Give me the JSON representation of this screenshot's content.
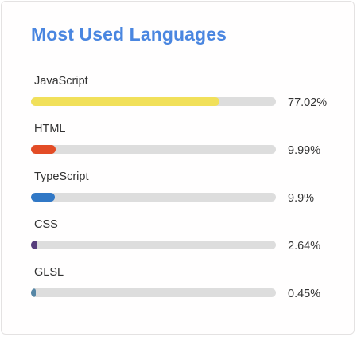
{
  "card": {
    "title": "Most Used Languages"
  },
  "languages": [
    {
      "name": "JavaScript",
      "percent_label": "77.02%",
      "value": 77.02,
      "color": "#f1e05a"
    },
    {
      "name": "HTML",
      "percent_label": "9.99%",
      "value": 9.99,
      "color": "#e34c26"
    },
    {
      "name": "TypeScript",
      "percent_label": "9.9%",
      "value": 9.9,
      "color": "#3178c6"
    },
    {
      "name": "CSS",
      "percent_label": "2.64%",
      "value": 2.64,
      "color": "#563d7c"
    },
    {
      "name": "GLSL",
      "percent_label": "0.45%",
      "value": 0.45,
      "color": "#5686a5"
    }
  ],
  "track_color": "#dddddd"
}
